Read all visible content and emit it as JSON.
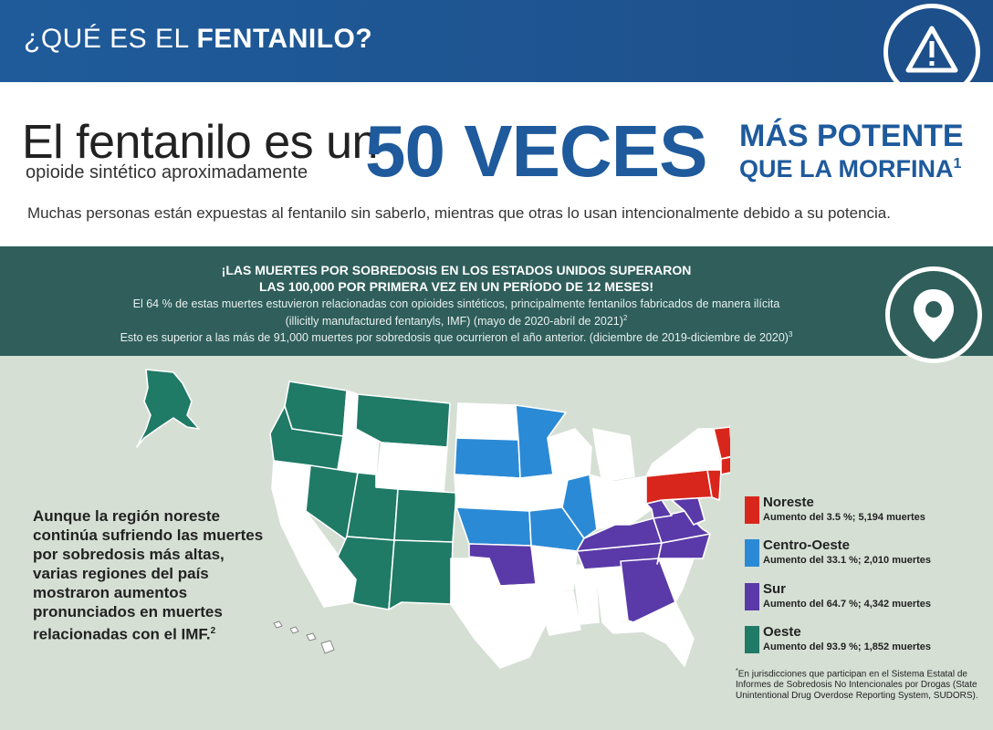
{
  "header": {
    "title_light": "¿QUÉ ES EL ",
    "title_bold": "FENTANILO?",
    "icon": "warning-triangle-icon"
  },
  "hero": {
    "line1": "El fentanilo es un",
    "line1_sub": "opioide sintético aproximadamente",
    "big": "50 VECES",
    "right1": "MÁS POTENTE",
    "right2": "QUE LA MORFINA",
    "right2_note": "1",
    "desc": "Muchas personas están expuestas al fentanilo sin saberlo, mientras que otras lo usan intencionalmente debido a su potencia."
  },
  "band": {
    "heading1": "¡LAS MUERTES POR SOBREDOSIS EN LOS ESTADOS UNIDOS SUPERARON",
    "heading2": "LAS 100,000 POR PRIMERA VEZ EN UN PERÍODO DE 12 MESES!",
    "p1": "El 64 % de estas muertes estuvieron relacionadas con opioides sintéticos, principalmente fentanilos fabricados de manera ilícita",
    "p2": "(illicitly manufactured fentanyls, IMF) (mayo de 2020-abril de 2021)",
    "p2_note": "2",
    "p3": "Esto es superior a las más de 91,000 muertes por sobredosis que ocurrieron el año anterior. (diciembre de 2019-diciembre de 2020)",
    "p3_note": "3",
    "icon": "location-pin-icon"
  },
  "side_text": "Aunque la región noreste continúa sufriendo las muertes por sobredosis más altas, varias regiones del país mostraron aumentos pronunciados en muertes relacionadas con el IMF.",
  "side_note": "2",
  "legend": [
    {
      "name": "Noreste",
      "stat": "Aumento del 3.5 %; 5,194 muertes",
      "color": "#d9261c"
    },
    {
      "name": "Centro-Oeste",
      "stat": "Aumento del 33.1 %; 2,010 muertes",
      "color": "#2b8ad6"
    },
    {
      "name": "Sur",
      "stat": "Aumento del 64.7 %; 4,342 muertes",
      "color": "#5a3aa8"
    },
    {
      "name": "Oeste",
      "stat": "Aumento del 93.9 %; 1,852 muertes",
      "color": "#1f7a66"
    }
  ],
  "footnote": "En jurisdicciones que participan en el Sistema Estatal de Informes de Sobredosis No Intencionales por Drogas (State Unintentional Drug Overdose Reporting System, SUDORS).",
  "footnote_mark": "*"
}
